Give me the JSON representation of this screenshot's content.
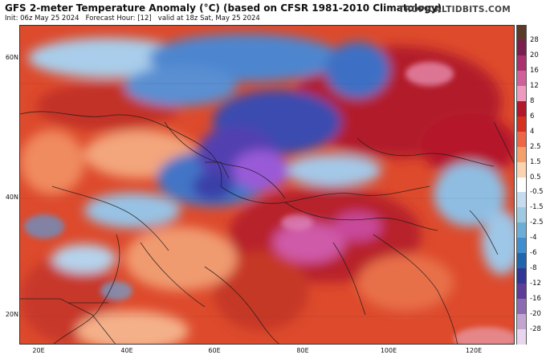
{
  "header": {
    "title": "GFS 2-meter Temperature Anomaly (°C) (based on CFSR 1981-2010 Climatology)",
    "init": "Init: 06z May 25 2024",
    "forecast_hour": "Forecast Hour: [12]",
    "valid": "valid at 18z Sat, May 25 2024",
    "brand": "TROPICALTIDBITS.COM"
  },
  "axes": {
    "lat_labels": [
      "60N",
      "40N",
      "20N"
    ],
    "lon_labels": [
      "20E",
      "40E",
      "60E",
      "80E",
      "100E",
      "120E"
    ]
  },
  "legend": {
    "labels": [
      "28",
      "20",
      "16",
      "12",
      "8",
      "6",
      "4",
      "2.5",
      "1.5",
      "0.5",
      "-0.5",
      "-1.5",
      "-2.5",
      "-4",
      "-6",
      "-8",
      "-12",
      "-16",
      "-20",
      "-28"
    ],
    "colors": [
      "#5a3a2a",
      "#7b1f4e",
      "#a8316e",
      "#d0609a",
      "#ef9bc0",
      "#b2182b",
      "#d7301f",
      "#ef6548",
      "#f5a06a",
      "#fbd3b0",
      "#ffffff",
      "#c6dbef",
      "#9ecae1",
      "#6baed6",
      "#3f8fd0",
      "#2166ac",
      "#313695",
      "#5e3c99",
      "#8c6bb1",
      "#c2a5cf",
      "#e8d6ee"
    ]
  },
  "colors": {
    "warm_deep": "#b2182b",
    "warm": "#e0502e",
    "warm_light": "#f4a27a",
    "cool_light": "#a6cce6",
    "cool": "#3f78c8",
    "cool_deep": "#4a3aa6",
    "purple": "#9a5ad8",
    "magenta": "#d070b8",
    "border": "#1a1a1a"
  }
}
